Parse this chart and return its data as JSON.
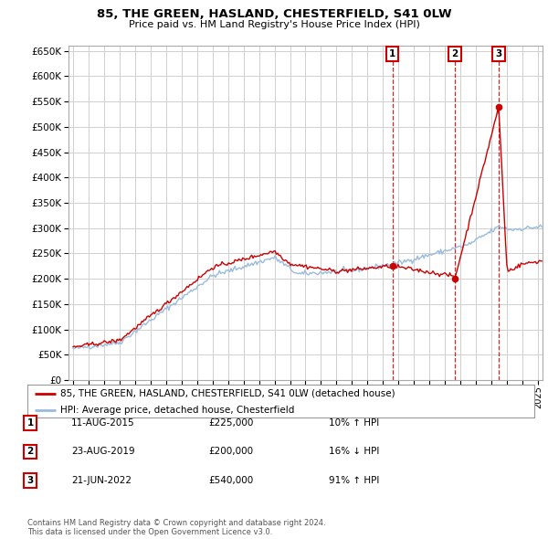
{
  "title": "85, THE GREEN, HASLAND, CHESTERFIELD, S41 0LW",
  "subtitle": "Price paid vs. HM Land Registry's House Price Index (HPI)",
  "ylim": [
    0,
    660000
  ],
  "yticks": [
    0,
    50000,
    100000,
    150000,
    200000,
    250000,
    300000,
    350000,
    400000,
    450000,
    500000,
    550000,
    600000,
    650000
  ],
  "background_color": "#ffffff",
  "grid_color": "#d0d0d0",
  "sale_color": "#cc0000",
  "hpi_color": "#99bbdd",
  "transaction_lines_color": "#cc0000",
  "transactions": [
    {
      "label": "1",
      "date_num": 2015.61,
      "price": 225000,
      "date_str": "11-AUG-2015"
    },
    {
      "label": "2",
      "date_num": 2019.64,
      "price": 200000,
      "date_str": "23-AUG-2019"
    },
    {
      "label": "3",
      "date_num": 2022.47,
      "price": 540000,
      "date_str": "21-JUN-2022"
    }
  ],
  "legend_sale_label": "85, THE GREEN, HASLAND, CHESTERFIELD, S41 0LW (detached house)",
  "legend_hpi_label": "HPI: Average price, detached house, Chesterfield",
  "footnote": "Contains HM Land Registry data © Crown copyright and database right 2024.\nThis data is licensed under the Open Government Licence v3.0.",
  "table_rows": [
    [
      "1",
      "11-AUG-2015",
      "£225,000",
      "10% ↑ HPI"
    ],
    [
      "2",
      "23-AUG-2019",
      "£200,000",
      "16% ↓ HPI"
    ],
    [
      "3",
      "21-JUN-2022",
      "£540,000",
      "91% ↑ HPI"
    ]
  ]
}
